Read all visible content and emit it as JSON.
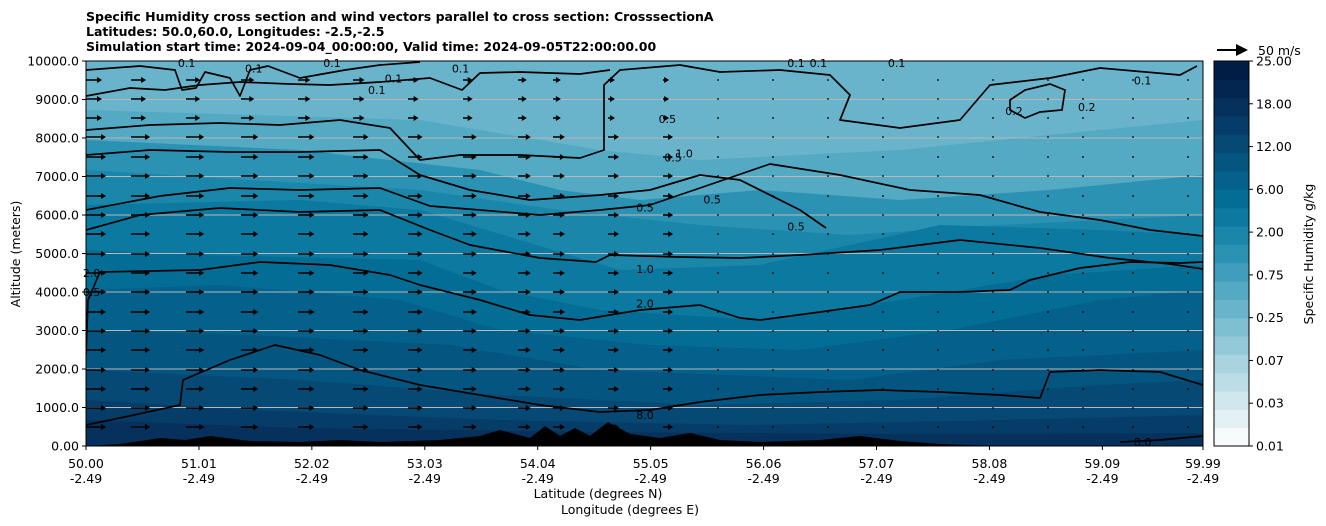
{
  "title_lines": [
    "Specific Humidity cross section and wind vectors parallel to cross section: CrosssectionA",
    "Latitudes: 50.0,60.0, Longitudes: -2.5,-2.5",
    "Simulation start time: 2024-09-04_00:00:00, Valid time: 2024-09-05T22:00:00.00"
  ],
  "chart_data": {
    "type": "heatmap",
    "ylabel": "Altitude (meters)",
    "xlabel_line1": "Latitude (degrees N)",
    "xlabel_line2": "Longitude (degrees E)",
    "ylim": [
      0,
      10000
    ],
    "yticks": [
      "0.00",
      "1000.0",
      "2000.0",
      "3000.0",
      "4000.0",
      "5000.0",
      "6000.0",
      "7000.0",
      "8000.0",
      "9000.0",
      "10000.0"
    ],
    "xticks": [
      {
        "lat": "50.00",
        "lon": "-2.49"
      },
      {
        "lat": "51.01",
        "lon": "-2.49"
      },
      {
        "lat": "52.02",
        "lon": "-2.49"
      },
      {
        "lat": "53.03",
        "lon": "-2.49"
      },
      {
        "lat": "54.04",
        "lon": "-2.49"
      },
      {
        "lat": "55.05",
        "lon": "-2.49"
      },
      {
        "lat": "56.06",
        "lon": "-2.49"
      },
      {
        "lat": "57.07",
        "lon": "-2.49"
      },
      {
        "lat": "58.08",
        "lon": "-2.49"
      },
      {
        "lat": "59.09",
        "lon": "-2.49"
      },
      {
        "lat": "59.99",
        "lon": "-2.49"
      }
    ],
    "colorbar": {
      "label": "Specific Humidity g/kg",
      "ticks": [
        "0.01",
        "0.03",
        "0.07",
        "0.25",
        "0.75",
        "2.00",
        "6.00",
        "12.00",
        "18.00",
        "25.00"
      ],
      "colors": [
        "#f7fbfc",
        "#e4f1f4",
        "#d0e7ee",
        "#bcdde7",
        "#a8d3e0",
        "#93c9d9",
        "#7ebfd2",
        "#69b4cb",
        "#54a9c3",
        "#3f9ebb",
        "#2c92b3",
        "#1a86aa",
        "#0b79a0",
        "#046d96",
        "#03618b",
        "#045580",
        "#054974",
        "#063d68",
        "#05315c",
        "#032650",
        "#011c45"
      ]
    },
    "quiver_key": "50 m/s",
    "grid": "horizontal",
    "contour_levels": [
      "0.1",
      "0.2",
      "0.5",
      "1.0",
      "2.0",
      "8.0"
    ],
    "contour_labels": [
      {
        "text": "0.1",
        "lat": 50.9,
        "alt": 9950
      },
      {
        "text": "0.1",
        "lat": 51.5,
        "alt": 9800
      },
      {
        "text": "0.1",
        "lat": 52.2,
        "alt": 9950
      },
      {
        "text": "0.1",
        "lat": 52.75,
        "alt": 9550
      },
      {
        "text": "0.1",
        "lat": 52.6,
        "alt": 9250
      },
      {
        "text": "0.1",
        "lat": 53.35,
        "alt": 9800
      },
      {
        "text": "0.1",
        "lat": 56.35,
        "alt": 9950
      },
      {
        "text": "0.1",
        "lat": 56.55,
        "alt": 9950
      },
      {
        "text": "0.1",
        "lat": 57.25,
        "alt": 9950
      },
      {
        "text": "0.1",
        "lat": 59.45,
        "alt": 9500
      },
      {
        "text": "0.2",
        "lat": 58.3,
        "alt": 8700
      },
      {
        "text": "0.2",
        "lat": 58.95,
        "alt": 8800
      },
      {
        "text": "0.5",
        "lat": 55.2,
        "alt": 8500
      },
      {
        "text": "0.5",
        "lat": 55.25,
        "alt": 7500
      },
      {
        "text": "1.0",
        "lat": 55.35,
        "alt": 7600
      },
      {
        "text": "0.5",
        "lat": 55.6,
        "alt": 6400
      },
      {
        "text": "0.5",
        "lat": 55.0,
        "alt": 6200
      },
      {
        "text": "0.5",
        "lat": 56.35,
        "alt": 5700
      },
      {
        "text": "1.0",
        "lat": 55.0,
        "alt": 4600
      },
      {
        "text": "2.0",
        "lat": 55.0,
        "alt": 3700
      },
      {
        "text": "8.0",
        "lat": 55.0,
        "alt": 800
      },
      {
        "text": "8.0",
        "lat": 59.45,
        "alt": 100
      },
      {
        "text": "2.0",
        "lat": 50.05,
        "alt": 4500
      },
      {
        "text": "0.5",
        "lat": 50.05,
        "alt": 4000
      }
    ]
  }
}
